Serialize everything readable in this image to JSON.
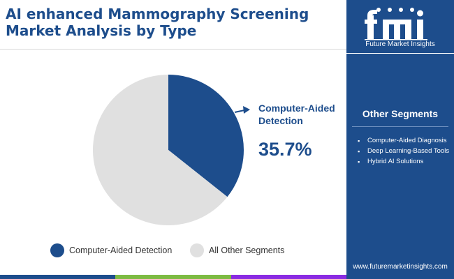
{
  "header": {
    "title": "AI enhanced Mammography Screening Market Analysis by Type"
  },
  "brand": {
    "logo_text": "fmi",
    "logo_subtitle": "Future Market Insights",
    "website": "www.futuremarketinsights.com",
    "color": "#1d4d8c"
  },
  "sidebar": {
    "title": "Other Segments",
    "items": [
      {
        "label": "Computer-Aided Diagnosis"
      },
      {
        "label": "Deep Learning-Based Tools"
      },
      {
        "label": "Hybrid AI Solutions"
      }
    ]
  },
  "callout": {
    "label": "Computer-Aided Detection",
    "value": "35.7%"
  },
  "chart_data": {
    "type": "pie",
    "slices": [
      {
        "label": "Computer-Aided Detection",
        "value": 35.7,
        "color": "#1d4d8c"
      },
      {
        "label": "All Other Segments",
        "value": 64.3,
        "color": "#e0e0e0"
      }
    ],
    "legend_position": "bottom"
  },
  "bottom_bar_colors": [
    "#1d4d8c",
    "#7dbb42",
    "#8a2be2"
  ]
}
